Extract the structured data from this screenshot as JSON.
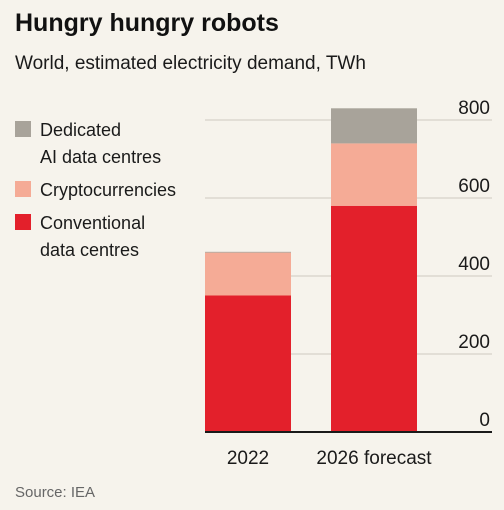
{
  "chart_data": {
    "type": "bar",
    "stacked": true,
    "title": "Hungry hungry robots",
    "subtitle": "World, estimated electricity demand, TWh",
    "categories": [
      "2022",
      "2026 forecast"
    ],
    "series": [
      {
        "name": "Conventional data centres",
        "color": "#e3202b",
        "values": [
          350,
          580
        ]
      },
      {
        "name": "Cryptocurrencies",
        "color": "#f5ab96",
        "values": [
          110,
          160
        ]
      },
      {
        "name": "Dedicated AI data centres",
        "color": "#a8a39a",
        "values": [
          2,
          90
        ]
      }
    ],
    "legend_order": [
      "Dedicated AI data centres",
      "Cryptocurrencies",
      "Conventional data centres"
    ],
    "legend_lines": {
      "Dedicated AI data centres": [
        "Dedicated",
        "AI data centres"
      ],
      "Cryptocurrencies": [
        "Cryptocurrencies"
      ],
      "Conventional data centres": [
        "Conventional",
        "data centres"
      ]
    },
    "ylim": [
      0,
      800
    ],
    "yticks": [
      0,
      200,
      400,
      600,
      800
    ],
    "y_axis_side": "right",
    "grid": true,
    "legend_position": "top-left",
    "source": "Source: IEA"
  }
}
